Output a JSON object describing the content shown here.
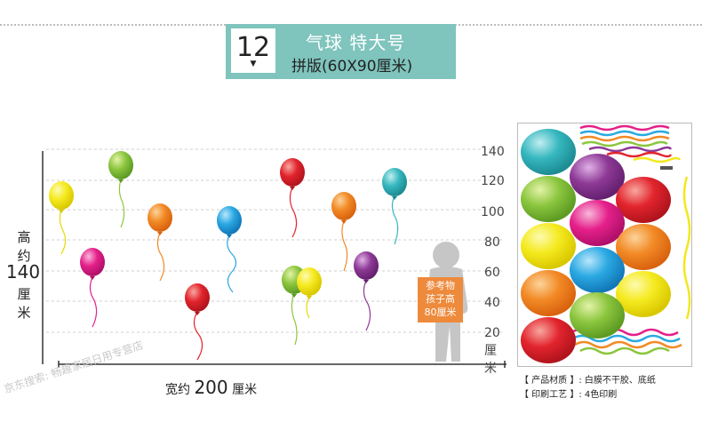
{
  "header": {
    "badge_number": "12",
    "badge_arrow": "▼",
    "title_line1": "气球 特大号",
    "title_line2": "拼版(60X90厘米)"
  },
  "scale": {
    "ticks": [
      "140",
      "120",
      "100",
      "80",
      "60",
      "40",
      "20"
    ],
    "unit_vertical": [
      "厘",
      "米"
    ],
    "height_label": [
      "高",
      "约",
      "140",
      "厘",
      "米"
    ],
    "width_label_prefix": "宽约",
    "width_label_value": "200",
    "width_label_unit": "厘米"
  },
  "reference": {
    "line1": "参考物",
    "line2": "孩子高",
    "line3": "80厘米"
  },
  "product_info": {
    "material": "【 产品材质 】: 白膜不干胶、底纸",
    "printing": "【 印刷工艺 】: 4色印刷"
  },
  "watermark": "京东搜索: 畅趣家居日用专营店",
  "colors": {
    "header_bg": "#7fc4bd",
    "yellow": "#f3e81d",
    "green": "#8cc63f",
    "orange": "#f08a24",
    "cyan": "#29a9e0",
    "red": "#e2242d",
    "pink": "#e5208a",
    "purple": "#8e3a96",
    "teal": "#36b7bf"
  }
}
